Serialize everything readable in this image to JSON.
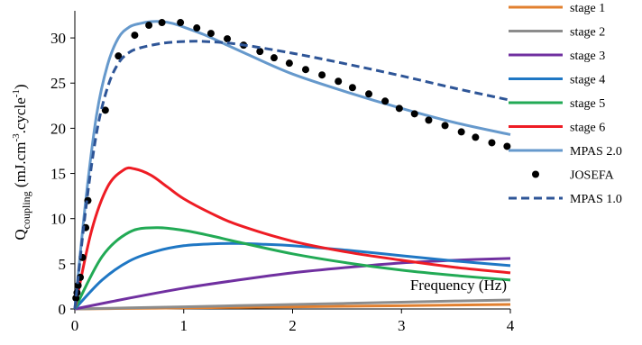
{
  "chart_data": {
    "type": "line",
    "title": "",
    "xlabel": "Frequency (Hz)",
    "ylabel": {
      "main": "Q",
      "sub": "coupling",
      "units_a": " (mJ.cm",
      "sup1": "-3",
      "units_b": ".cycle",
      "sup2": "-1",
      "units_c": ")"
    },
    "xlim": [
      0,
      4
    ],
    "ylim": [
      0,
      33
    ],
    "xticks": [
      0,
      1,
      2,
      3,
      4
    ],
    "yticks": [
      0,
      5,
      10,
      15,
      20,
      25,
      30
    ],
    "grid": false,
    "legend_position": "right",
    "series": [
      {
        "name": "stage 1",
        "color": "#E2802F",
        "style": "solid",
        "x": [
          0,
          0.5,
          1,
          1.5,
          2,
          2.5,
          3,
          3.5,
          4
        ],
        "y": [
          0,
          0.06,
          0.12,
          0.18,
          0.24,
          0.3,
          0.36,
          0.43,
          0.5
        ]
      },
      {
        "name": "stage 2",
        "color": "#8C8C8C",
        "style": "solid",
        "x": [
          0,
          0.5,
          1,
          1.5,
          2,
          2.5,
          3,
          3.5,
          4
        ],
        "y": [
          0,
          0.12,
          0.24,
          0.37,
          0.5,
          0.62,
          0.75,
          0.88,
          1.0
        ]
      },
      {
        "name": "stage 3",
        "color": "#7030A0",
        "style": "solid",
        "x": [
          0,
          0.5,
          1,
          1.5,
          2,
          2.5,
          3,
          3.5,
          4
        ],
        "y": [
          0,
          1.2,
          2.3,
          3.2,
          4.0,
          4.6,
          5.1,
          5.4,
          5.6
        ]
      },
      {
        "name": "stage 4",
        "color": "#1F77C4",
        "style": "solid",
        "x": [
          0,
          0.25,
          0.5,
          0.75,
          1,
          1.25,
          1.5,
          1.75,
          2,
          2.5,
          3,
          3.5,
          4
        ],
        "y": [
          0,
          3.2,
          5.3,
          6.4,
          7.0,
          7.2,
          7.25,
          7.15,
          7.0,
          6.5,
          5.9,
          5.3,
          4.8
        ]
      },
      {
        "name": "stage 5",
        "color": "#22AA55",
        "style": "solid",
        "x": [
          0,
          0.25,
          0.5,
          0.75,
          1,
          1.25,
          1.5,
          2,
          2.5,
          3,
          3.5,
          4
        ],
        "y": [
          0,
          5.8,
          8.5,
          9.0,
          8.7,
          8.1,
          7.4,
          6.1,
          5.1,
          4.3,
          3.7,
          3.2
        ]
      },
      {
        "name": "stage 6",
        "color": "#EE1C24",
        "style": "solid",
        "x": [
          0,
          0.15,
          0.3,
          0.45,
          0.55,
          0.7,
          0.85,
          1,
          1.25,
          1.5,
          2,
          2.5,
          3,
          3.5,
          4
        ],
        "y": [
          0,
          8.5,
          13.5,
          15.4,
          15.5,
          14.8,
          13.5,
          12.2,
          10.6,
          9.3,
          7.5,
          6.3,
          5.4,
          4.6,
          4.0
        ]
      },
      {
        "name": "MPAS 2.0",
        "color": "#6699CC",
        "style": "solid",
        "x": [
          0,
          0.1,
          0.2,
          0.3,
          0.4,
          0.5,
          0.6,
          0.7,
          0.8,
          0.9,
          1.0,
          1.2,
          1.4,
          1.6,
          2,
          2.5,
          3,
          3.5,
          4
        ],
        "y": [
          0,
          12,
          21.5,
          27,
          30,
          31.2,
          31.6,
          31.8,
          31.8,
          31.6,
          31.2,
          30.3,
          29.2,
          28.1,
          26.0,
          24.0,
          22.2,
          20.6,
          19.3
        ]
      },
      {
        "name": "JOSEFA",
        "color": "#000000",
        "style": "markers",
        "x": [
          0.01,
          0.02,
          0.03,
          0.05,
          0.07,
          0.1,
          0.12,
          0.28,
          0.4,
          0.55,
          0.68,
          0.8,
          0.97,
          1.12,
          1.25,
          1.4,
          1.55,
          1.7,
          1.83,
          1.97,
          2.12,
          2.27,
          2.42,
          2.55,
          2.7,
          2.85,
          2.98,
          3.12,
          3.25,
          3.4,
          3.55,
          3.68,
          3.83,
          3.97
        ],
        "y": [
          1.2,
          1.8,
          2.6,
          3.5,
          5.7,
          9.0,
          12.0,
          22,
          28,
          30.3,
          31.4,
          31.7,
          31.7,
          31.1,
          30.5,
          29.9,
          29.2,
          28.5,
          27.8,
          27.2,
          26.5,
          25.9,
          25.2,
          24.5,
          23.8,
          23.0,
          22.2,
          21.6,
          20.9,
          20.3,
          19.6,
          19.0,
          18.4,
          18.0
        ]
      },
      {
        "name": "MPAS 1.0",
        "color": "#2E5597",
        "style": "dashed",
        "x": [
          0,
          0.1,
          0.2,
          0.3,
          0.4,
          0.5,
          0.6,
          0.8,
          1.0,
          1.2,
          1.5,
          2,
          2.5,
          3,
          3.5,
          4
        ],
        "y": [
          0,
          11,
          19.5,
          24.5,
          27.2,
          28.4,
          28.9,
          29.4,
          29.6,
          29.6,
          29.3,
          28.3,
          27.1,
          25.8,
          24.4,
          23.1
        ]
      }
    ]
  }
}
